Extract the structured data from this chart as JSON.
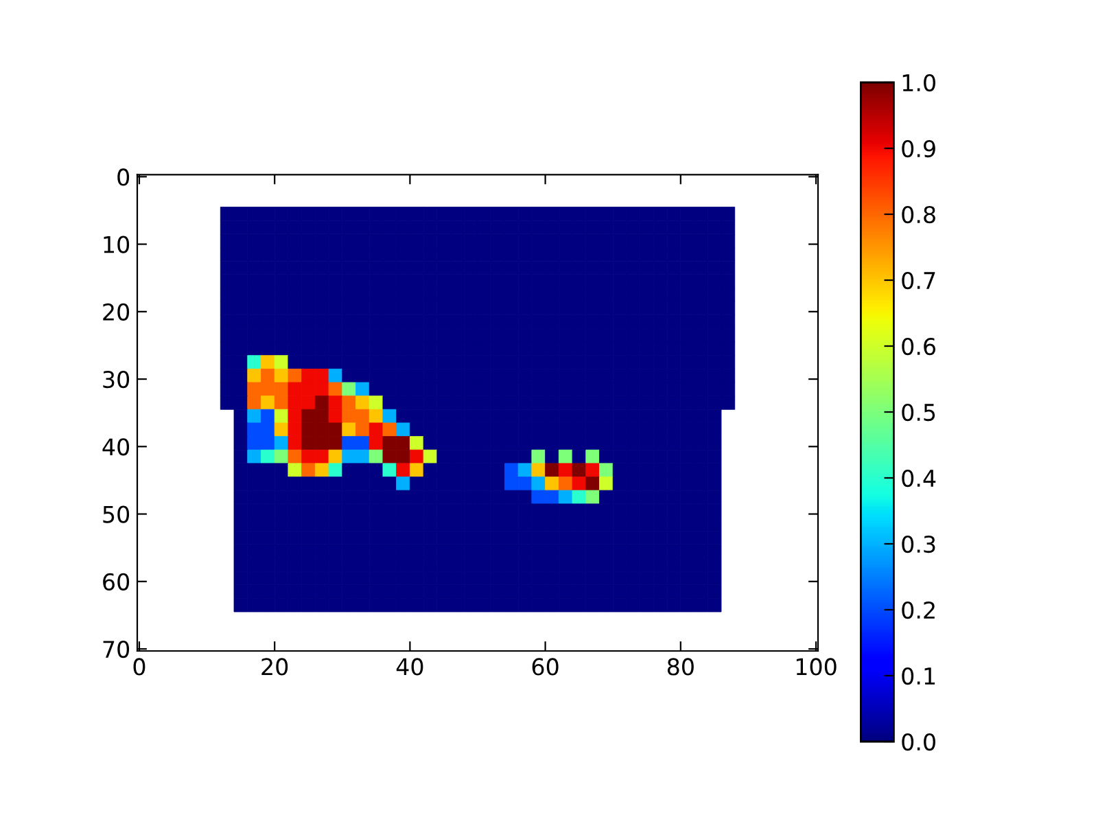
{
  "chart_data": {
    "type": "heatmap",
    "xlim": [
      -0.3,
      100.3
    ],
    "ylim": [
      70.3,
      -0.3
    ],
    "xticks": [
      0,
      20,
      40,
      60,
      80,
      100
    ],
    "yticks": [
      0,
      10,
      20,
      30,
      40,
      50,
      60,
      70
    ],
    "clim": [
      0,
      1
    ],
    "cticks": [
      {
        "value": 0,
        "label": "0.0"
      },
      0.1,
      0.2,
      0.3,
      0.4,
      0.5,
      0.6,
      0.7,
      0.8,
      0.9,
      {
        "value": 1,
        "label": "1.0"
      }
    ],
    "x": [
      13,
      15,
      17,
      19,
      21,
      23,
      25,
      27,
      29,
      31,
      33,
      35,
      37,
      39,
      41,
      43,
      45,
      47,
      49,
      51,
      53,
      55,
      57,
      59,
      61,
      63,
      65,
      67,
      69,
      71,
      73,
      75,
      77,
      79,
      81,
      83,
      85,
      87
    ],
    "y": [
      5.5,
      7.5,
      9.5,
      11.5,
      13.5,
      15.5,
      17.5,
      19.5,
      21.5,
      23.5,
      25.5,
      27.5,
      29.5,
      31.5,
      33.5,
      35.5,
      37.5,
      39.5,
      41.5,
      43.5,
      45.5,
      47.5,
      49.5,
      51.5,
      53.5,
      55.5,
      57.5,
      59.5,
      61.5,
      63.5
    ],
    "cells": [
      [
        0,
        0,
        0,
        0,
        0,
        0,
        0,
        0,
        0,
        0,
        0,
        0,
        0,
        0,
        0,
        0,
        0,
        0,
        0,
        0,
        0,
        0,
        0,
        0,
        0,
        0,
        0,
        0,
        0,
        0,
        0,
        0,
        0,
        0,
        0,
        0,
        0,
        0
      ],
      [
        0,
        0,
        0,
        0,
        0,
        0,
        0,
        0,
        0,
        0,
        0,
        0,
        0,
        0,
        0,
        0,
        0,
        0,
        0,
        0,
        0,
        0,
        0,
        0,
        0,
        0,
        0,
        0,
        0,
        0,
        0,
        0,
        0,
        0,
        0,
        0,
        0,
        0
      ],
      [
        0,
        0,
        0,
        0,
        0,
        0,
        0,
        0,
        0,
        0,
        0,
        0,
        0,
        0,
        0,
        0,
        0,
        0,
        0,
        0,
        0,
        0,
        0,
        0,
        0,
        0,
        0,
        0,
        0,
        0,
        0,
        0,
        0,
        0,
        0,
        0,
        0,
        0
      ],
      [
        0,
        0,
        0,
        0,
        0,
        0,
        0,
        0,
        0,
        0,
        0,
        0,
        0,
        0,
        0,
        0,
        0,
        0,
        0,
        0,
        0,
        0,
        0,
        0,
        0,
        0,
        0,
        0,
        0,
        0,
        0,
        0,
        0,
        0,
        0,
        0,
        0,
        0
      ],
      [
        0,
        0,
        0,
        0,
        0,
        0,
        0,
        0,
        0,
        0,
        0,
        0,
        0,
        0,
        0,
        0,
        0,
        0,
        0,
        0,
        0,
        0,
        0,
        0,
        0,
        0,
        0,
        0,
        0,
        0,
        0,
        0,
        0,
        0,
        0,
        0,
        0,
        0
      ],
      [
        0,
        0,
        0,
        0,
        0,
        0,
        0,
        0,
        0,
        0,
        0,
        0,
        0,
        0,
        0,
        0,
        0,
        0,
        0,
        0,
        0,
        0,
        0,
        0,
        0,
        0,
        0,
        0,
        0,
        0,
        0,
        0,
        0,
        0,
        0,
        0,
        0,
        0
      ],
      [
        0,
        0,
        0,
        0,
        0,
        0,
        0,
        0,
        0,
        0,
        0,
        0,
        0,
        0,
        0,
        0,
        0,
        0,
        0,
        0,
        0,
        0,
        0,
        0,
        0,
        0,
        0,
        0,
        0,
        0,
        0,
        0,
        0,
        0,
        0,
        0,
        0,
        0
      ],
      [
        0,
        0,
        0,
        0,
        0,
        0,
        0,
        0,
        0,
        0,
        0,
        0,
        0,
        0,
        0,
        0,
        0,
        0,
        0,
        0,
        0,
        0,
        0,
        0,
        0,
        0,
        0,
        0,
        0,
        0,
        0,
        0,
        0,
        0,
        0,
        0,
        0,
        0
      ],
      [
        0,
        0,
        0,
        0,
        0,
        0,
        0,
        0,
        0,
        0,
        0,
        0,
        0,
        0,
        0,
        0,
        0,
        0,
        0,
        0,
        0,
        0,
        0,
        0,
        0,
        0,
        0,
        0,
        0,
        0,
        0,
        0,
        0,
        0,
        0,
        0,
        0,
        0
      ],
      [
        0,
        0,
        0,
        0,
        0,
        0,
        0,
        0,
        0,
        0,
        0,
        0,
        0,
        0,
        0,
        0,
        0,
        0,
        0,
        0,
        0,
        0,
        0,
        0,
        0,
        0,
        0,
        0,
        0,
        0,
        0,
        0,
        0,
        0,
        0,
        0,
        0,
        0
      ],
      [
        0,
        0,
        0,
        0,
        0,
        0,
        0,
        0,
        0,
        0,
        0,
        0,
        0,
        0,
        0,
        0,
        0,
        0,
        0,
        0,
        0,
        0,
        0,
        0,
        0,
        0,
        0,
        0,
        0,
        0,
        0,
        0,
        0,
        0,
        0,
        0,
        0,
        0
      ],
      [
        0,
        0,
        0.4,
        0.7,
        0.6,
        0,
        0,
        0,
        0,
        0,
        0,
        0,
        0,
        0,
        0,
        0,
        0,
        0,
        0,
        0,
        0,
        0,
        0,
        0,
        0,
        0,
        0,
        0,
        0,
        0,
        0,
        0,
        0,
        0,
        0,
        0,
        0,
        0
      ],
      [
        0,
        0,
        0.7,
        0.8,
        0.7,
        0.8,
        0.9,
        0.9,
        0.3,
        0,
        0,
        0,
        0,
        0,
        0,
        0,
        0,
        0,
        0,
        0,
        0,
        0,
        0,
        0,
        0,
        0,
        0,
        0,
        0,
        0,
        0,
        0,
        0,
        0,
        0,
        0,
        0,
        0
      ],
      [
        0,
        0,
        0.8,
        0.8,
        0.8,
        0.9,
        0.9,
        0.9,
        0.8,
        0.5,
        0.3,
        0,
        0,
        0,
        0,
        0,
        0,
        0,
        0,
        0,
        0,
        0,
        0,
        0,
        0,
        0,
        0,
        0,
        0,
        0,
        0,
        0,
        0,
        0,
        0,
        0,
        0,
        0
      ],
      [
        0,
        0,
        0.8,
        0.7,
        0.8,
        0.9,
        0.9,
        1,
        0.9,
        0.8,
        0.7,
        0.6,
        0,
        0,
        0,
        0,
        0,
        0,
        0,
        0,
        0,
        0,
        0,
        0,
        0,
        0,
        0,
        0,
        0,
        0,
        0,
        0,
        0,
        0,
        0,
        0,
        0,
        0
      ],
      [
        null,
        0,
        0.3,
        0.2,
        0.6,
        0.9,
        1,
        1,
        0.9,
        0.8,
        0.8,
        0.7,
        0.3,
        0,
        0,
        0,
        0,
        0,
        0,
        0,
        0,
        0,
        0,
        0,
        0,
        0,
        0,
        0,
        0,
        0,
        0,
        0,
        0,
        0,
        0,
        0,
        0,
        null
      ],
      [
        null,
        0,
        0.2,
        0.2,
        0.7,
        0.9,
        1,
        1,
        1,
        0.7,
        0.8,
        0.9,
        0.8,
        0.3,
        0,
        0,
        0,
        0,
        0,
        0,
        0,
        0,
        0,
        0,
        0,
        0,
        0,
        0,
        0,
        0,
        0,
        0,
        0,
        0,
        0,
        0,
        0,
        null
      ],
      [
        null,
        0,
        0.2,
        0.2,
        0.3,
        0.9,
        1,
        1,
        1,
        0.2,
        0.2,
        0.9,
        1,
        1,
        0.6,
        0,
        0,
        0,
        0,
        0,
        0,
        0,
        0,
        0,
        0,
        0,
        0,
        0,
        0,
        0,
        0,
        0,
        0,
        0,
        0,
        0,
        0,
        null
      ],
      [
        null,
        0,
        0.3,
        0.4,
        0.5,
        0.8,
        0.9,
        0.9,
        0.7,
        0.3,
        0.3,
        0.5,
        1,
        1,
        0.9,
        0.6,
        0,
        0,
        0,
        0,
        0,
        0,
        0,
        0.5,
        0,
        0.5,
        0,
        0.5,
        0,
        0,
        0,
        0,
        0,
        0,
        0,
        0,
        0,
        null
      ],
      [
        null,
        0,
        0,
        0,
        0,
        0.6,
        0.8,
        0.7,
        0.4,
        0,
        0,
        0,
        0.4,
        0.9,
        0.7,
        0,
        0,
        0,
        0,
        0,
        0,
        0.2,
        0.3,
        0.7,
        1,
        0.9,
        1,
        0.9,
        0.5,
        0,
        0,
        0,
        0,
        0,
        0,
        0,
        0,
        null
      ],
      [
        null,
        0,
        0,
        0,
        0,
        0,
        0,
        0,
        0,
        0,
        0,
        0,
        0,
        0.3,
        0,
        0,
        0,
        0,
        0,
        0,
        0,
        0.2,
        0.2,
        0.3,
        0.7,
        0.8,
        0.9,
        1,
        0.6,
        0,
        0,
        0,
        0,
        0,
        0,
        0,
        0,
        null
      ],
      [
        null,
        0,
        0,
        0,
        0,
        0,
        0,
        0,
        0,
        0,
        0,
        0,
        0,
        0,
        0,
        0,
        0,
        0,
        0,
        0,
        0,
        0,
        0,
        0.2,
        0.2,
        0.3,
        0.4,
        0.5,
        0,
        0,
        0,
        0,
        0,
        0,
        0,
        0,
        0,
        null
      ],
      [
        null,
        0,
        0,
        0,
        0,
        0,
        0,
        0,
        0,
        0,
        0,
        0,
        0,
        0,
        0,
        0,
        0,
        0,
        0,
        0,
        0,
        0,
        0,
        0,
        0,
        0,
        0,
        0,
        0,
        0,
        0,
        0,
        0,
        0,
        0,
        0,
        0,
        null
      ],
      [
        null,
        0,
        0,
        0,
        0,
        0,
        0,
        0,
        0,
        0,
        0,
        0,
        0,
        0,
        0,
        0,
        0,
        0,
        0,
        0,
        0,
        0,
        0,
        0,
        0,
        0,
        0,
        0,
        0,
        0,
        0,
        0,
        0,
        0,
        0,
        0,
        0,
        null
      ],
      [
        null,
        0,
        0,
        0,
        0,
        0,
        0,
        0,
        0,
        0,
        0,
        0,
        0,
        0,
        0,
        0,
        0,
        0,
        0,
        0,
        0,
        0,
        0,
        0,
        0,
        0,
        0,
        0,
        0,
        0,
        0,
        0,
        0,
        0,
        0,
        0,
        0,
        null
      ],
      [
        null,
        0,
        0,
        0,
        0,
        0,
        0,
        0,
        0,
        0,
        0,
        0,
        0,
        0,
        0,
        0,
        0,
        0,
        0,
        0,
        0,
        0,
        0,
        0,
        0,
        0,
        0,
        0,
        0,
        0,
        0,
        0,
        0,
        0,
        0,
        0,
        0,
        null
      ],
      [
        null,
        0,
        0,
        0,
        0,
        0,
        0,
        0,
        0,
        0,
        0,
        0,
        0,
        0,
        0,
        0,
        0,
        0,
        0,
        0,
        0,
        0,
        0,
        0,
        0,
        0,
        0,
        0,
        0,
        0,
        0,
        0,
        0,
        0,
        0,
        0,
        0,
        null
      ],
      [
        null,
        0,
        0,
        0,
        0,
        0,
        0,
        0,
        0,
        0,
        0,
        0,
        0,
        0,
        0,
        0,
        0,
        0,
        0,
        0,
        0,
        0,
        0,
        0,
        0,
        0,
        0,
        0,
        0,
        0,
        0,
        0,
        0,
        0,
        0,
        0,
        0,
        null
      ],
      [
        null,
        0,
        0,
        0,
        0,
        0,
        0,
        0,
        0,
        0,
        0,
        0,
        0,
        0,
        0,
        0,
        0,
        0,
        0,
        0,
        0,
        0,
        0,
        0,
        0,
        0,
        0,
        0,
        0,
        0,
        0,
        0,
        0,
        0,
        0,
        0,
        0,
        null
      ],
      [
        null,
        0,
        0,
        0,
        0,
        0,
        0,
        0,
        0,
        0,
        0,
        0,
        0,
        0,
        0,
        0,
        0,
        0,
        0,
        0,
        0,
        0,
        0,
        0,
        0,
        0,
        0,
        0,
        0,
        0,
        0,
        0,
        0,
        0,
        0,
        0,
        0,
        null
      ]
    ]
  }
}
